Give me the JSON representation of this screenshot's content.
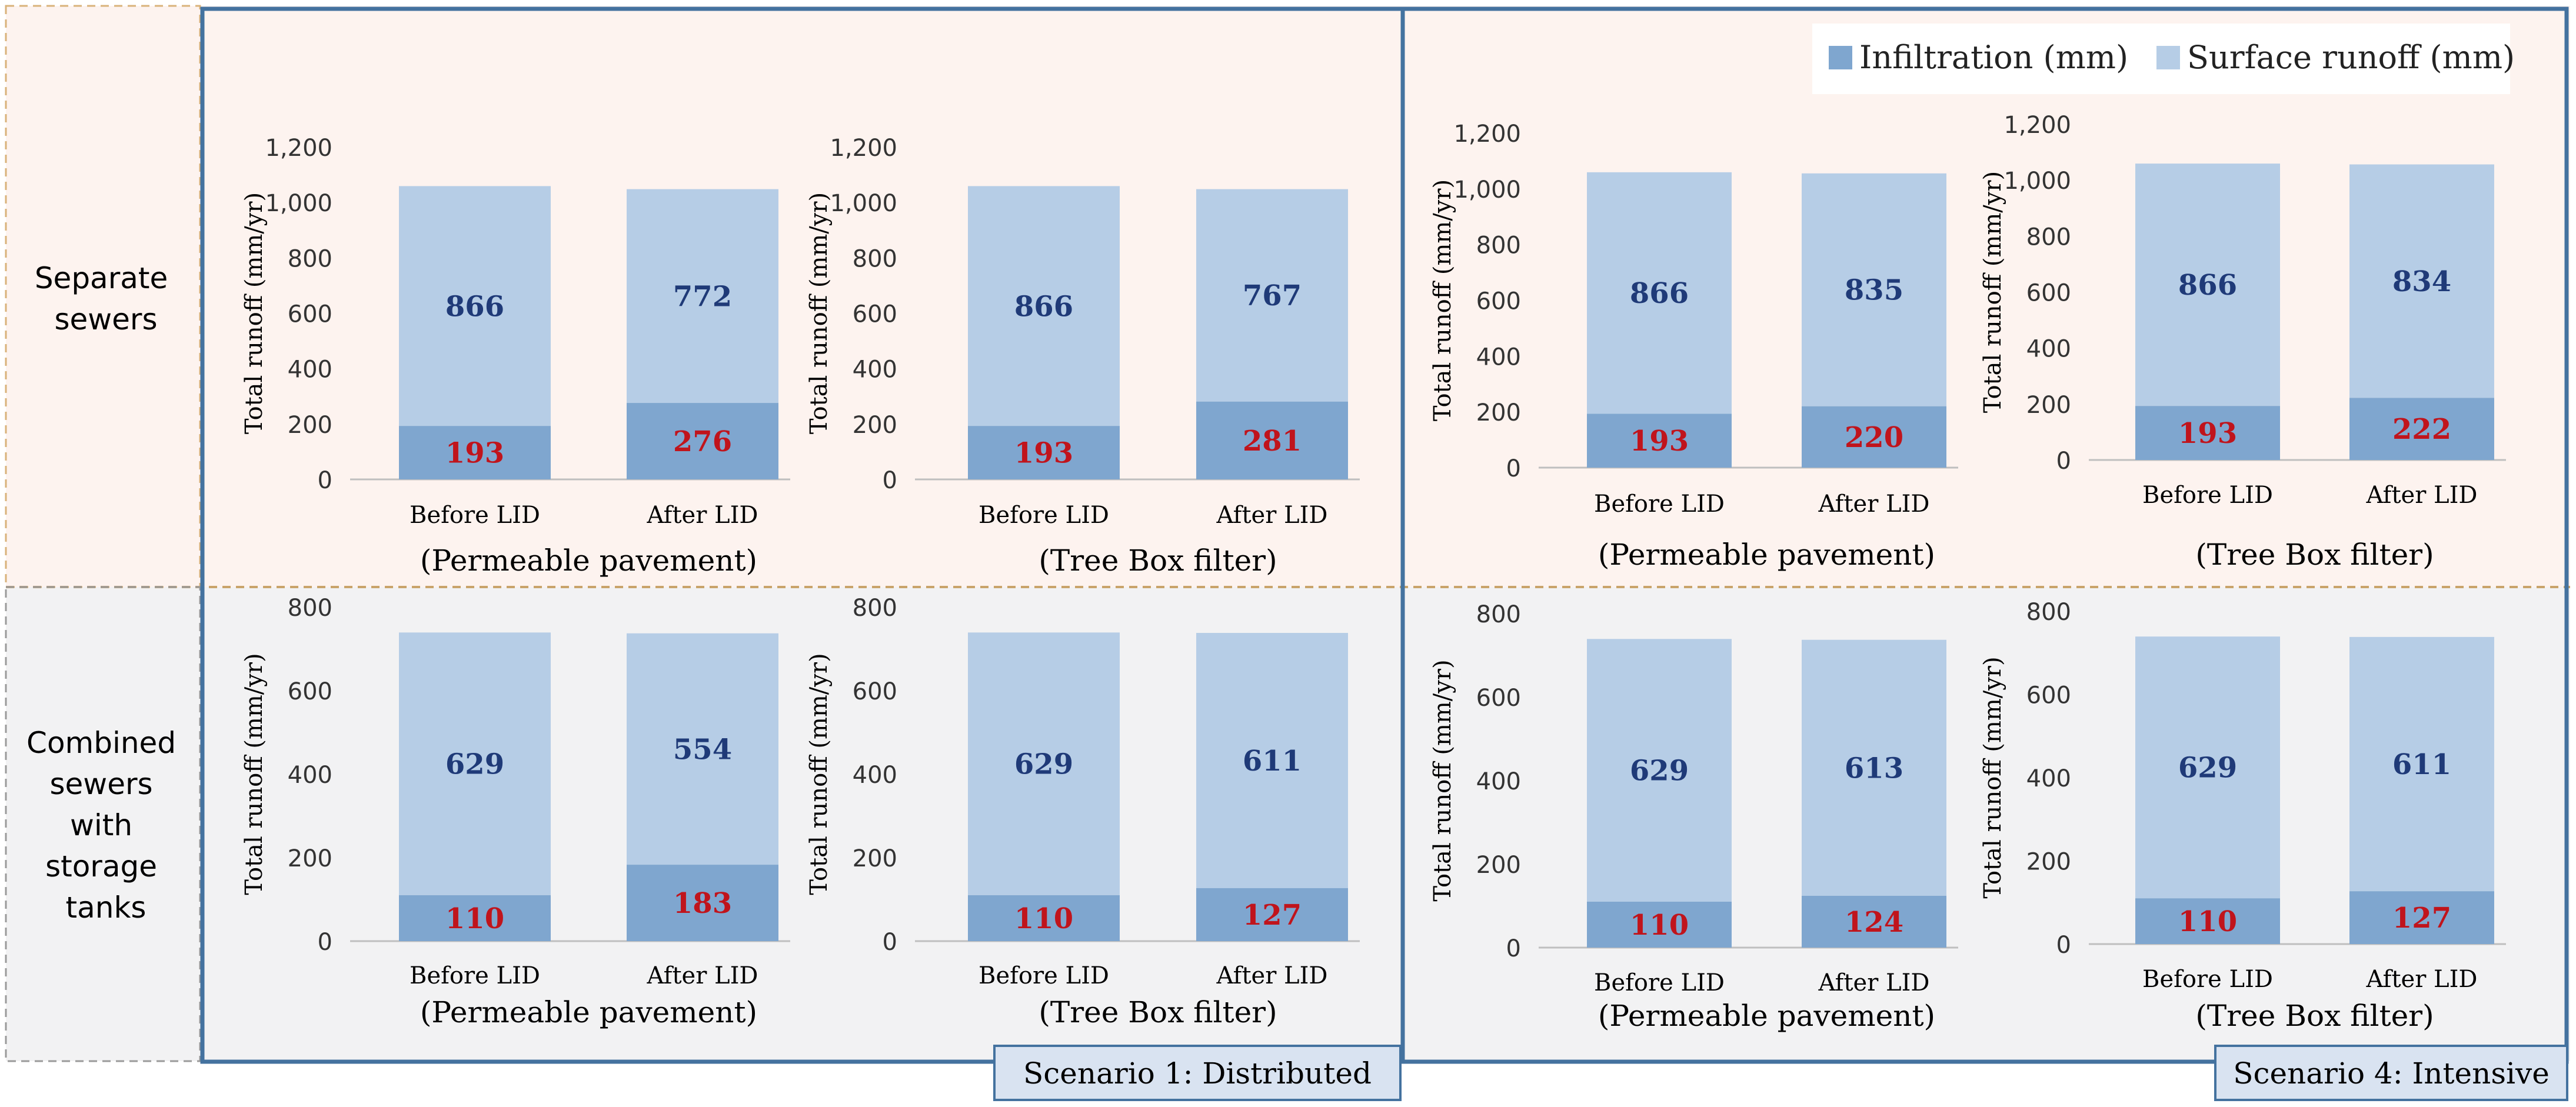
{
  "row_labels": {
    "separate": [
      "Separate",
      "sewers"
    ],
    "combined": [
      "Combined",
      "sewers",
      "with",
      "storage",
      "tanks"
    ]
  },
  "scenario_labels": {
    "s1": "Scenario 1: Distributed",
    "s4": "Scenario 4: Intensive"
  },
  "legend": {
    "infiltration": "Infiltration (mm)",
    "surface": "Surface runoff (mm)"
  },
  "colors": {
    "infiltration": "#7fa6cf",
    "surface": "#b6cde6",
    "infil_label": "#c0141c",
    "surface_label": "#1f3a78",
    "frame": "#44729f",
    "separate_bg": "#fdf3ef",
    "combined_bg": "#f2f2f3",
    "scenario_box_bg": "#d9e3f1"
  },
  "chart_data": [
    {
      "id": "s1-sep-pp",
      "type": "bar",
      "stacked": true,
      "scenario": "Scenario 1: Distributed",
      "row": "Separate sewers",
      "title": "(Permeable pavement)",
      "ylabel": "Total runoff (mm/yr)",
      "ylim": [
        0,
        1200
      ],
      "ticks": [
        "0",
        "200",
        "400",
        "600",
        "800",
        "1,000",
        "1,200"
      ],
      "tick_values": [
        0,
        200,
        400,
        600,
        800,
        1000,
        1200
      ],
      "categories": [
        "Before LID",
        "After LID"
      ],
      "series": [
        {
          "name": "Infiltration (mm)",
          "values": [
            193,
            276
          ]
        },
        {
          "name": "Surface runoff (mm)",
          "values": [
            866,
            772
          ]
        }
      ]
    },
    {
      "id": "s1-sep-tb",
      "type": "bar",
      "stacked": true,
      "scenario": "Scenario 1: Distributed",
      "row": "Separate sewers",
      "title": "(Tree Box filter)",
      "ylabel": "Total runoff (mm/yr)",
      "ylim": [
        0,
        1200
      ],
      "ticks": [
        "0",
        "200",
        "400",
        "600",
        "800",
        "1,000",
        "1,200"
      ],
      "tick_values": [
        0,
        200,
        400,
        600,
        800,
        1000,
        1200
      ],
      "categories": [
        "Before LID",
        "After LID"
      ],
      "series": [
        {
          "name": "Infiltration (mm)",
          "values": [
            193,
            281
          ]
        },
        {
          "name": "Surface runoff (mm)",
          "values": [
            866,
            767
          ]
        }
      ]
    },
    {
      "id": "s4-sep-pp",
      "type": "bar",
      "stacked": true,
      "scenario": "Scenario 4: Intensive",
      "row": "Separate sewers",
      "title": "(Permeable pavement)",
      "ylabel": "Total runoff (mm/yr)",
      "ylim": [
        0,
        1200
      ],
      "ticks": [
        "0",
        "200",
        "400",
        "600",
        "800",
        "1,000",
        "1,200"
      ],
      "tick_values": [
        0,
        200,
        400,
        600,
        800,
        1000,
        1200
      ],
      "categories": [
        "Before LID",
        "After LID"
      ],
      "series": [
        {
          "name": "Infiltration (mm)",
          "values": [
            193,
            220
          ]
        },
        {
          "name": "Surface runoff (mm)",
          "values": [
            866,
            835
          ]
        }
      ]
    },
    {
      "id": "s4-sep-tb",
      "type": "bar",
      "stacked": true,
      "scenario": "Scenario 4: Intensive",
      "row": "Separate sewers",
      "title": "(Tree Box filter)",
      "ylabel": "Total runoff (mm/yr)",
      "ylim": [
        0,
        1200
      ],
      "ticks": [
        "0",
        "200",
        "400",
        "600",
        "800",
        "1,000",
        "1,200"
      ],
      "tick_values": [
        0,
        200,
        400,
        600,
        800,
        1000,
        1200
      ],
      "categories": [
        "Before LID",
        "After LID"
      ],
      "series": [
        {
          "name": "Infiltration (mm)",
          "values": [
            193,
            222
          ]
        },
        {
          "name": "Surface runoff (mm)",
          "values": [
            866,
            834
          ]
        }
      ]
    },
    {
      "id": "s1-com-pp",
      "type": "bar",
      "stacked": true,
      "scenario": "Scenario 1: Distributed",
      "row": "Combined sewers with storage tanks",
      "title": "(Permeable pavement)",
      "ylabel": "Total runoff (mm/yr)",
      "ylim": [
        0,
        800
      ],
      "ticks": [
        "0",
        "200",
        "400",
        "600",
        "800"
      ],
      "tick_values": [
        0,
        200,
        400,
        600,
        800
      ],
      "categories": [
        "Before LID",
        "After LID"
      ],
      "series": [
        {
          "name": "Infiltration (mm)",
          "values": [
            110,
            183
          ]
        },
        {
          "name": "Surface runoff (mm)",
          "values": [
            629,
            554
          ]
        }
      ]
    },
    {
      "id": "s1-com-tb",
      "type": "bar",
      "stacked": true,
      "scenario": "Scenario 1: Distributed",
      "row": "Combined sewers with storage tanks",
      "title": "(Tree Box filter)",
      "ylabel": "Total runoff (mm/yr)",
      "ylim": [
        0,
        800
      ],
      "ticks": [
        "0",
        "200",
        "400",
        "600",
        "800"
      ],
      "tick_values": [
        0,
        200,
        400,
        600,
        800
      ],
      "categories": [
        "Before LID",
        "After LID"
      ],
      "series": [
        {
          "name": "Infiltration (mm)",
          "values": [
            110,
            127
          ]
        },
        {
          "name": "Surface runoff (mm)",
          "values": [
            629,
            611
          ]
        }
      ]
    },
    {
      "id": "s4-com-pp",
      "type": "bar",
      "stacked": true,
      "scenario": "Scenario 4: Intensive",
      "row": "Combined sewers with storage tanks",
      "title": "(Permeable pavement)",
      "ylabel": "Total runoff (mm/yr)",
      "ylim": [
        0,
        800
      ],
      "ticks": [
        "0",
        "200",
        "400",
        "600",
        "800"
      ],
      "tick_values": [
        0,
        200,
        400,
        600,
        800
      ],
      "categories": [
        "Before LID",
        "After LID"
      ],
      "series": [
        {
          "name": "Infiltration (mm)",
          "values": [
            110,
            124
          ]
        },
        {
          "name": "Surface runoff (mm)",
          "values": [
            629,
            613
          ]
        }
      ]
    },
    {
      "id": "s4-com-tb",
      "type": "bar",
      "stacked": true,
      "scenario": "Scenario 4: Intensive",
      "row": "Combined sewers with storage tanks",
      "title": "(Tree Box filter)",
      "ylabel": "Total runoff (mm/yr)",
      "ylim": [
        0,
        800
      ],
      "ticks": [
        "0",
        "200",
        "400",
        "600",
        "800"
      ],
      "tick_values": [
        0,
        200,
        400,
        600,
        800
      ],
      "categories": [
        "Before LID",
        "After LID"
      ],
      "series": [
        {
          "name": "Infiltration (mm)",
          "values": [
            110,
            127
          ]
        },
        {
          "name": "Surface runoff (mm)",
          "values": [
            629,
            611
          ]
        }
      ]
    }
  ]
}
